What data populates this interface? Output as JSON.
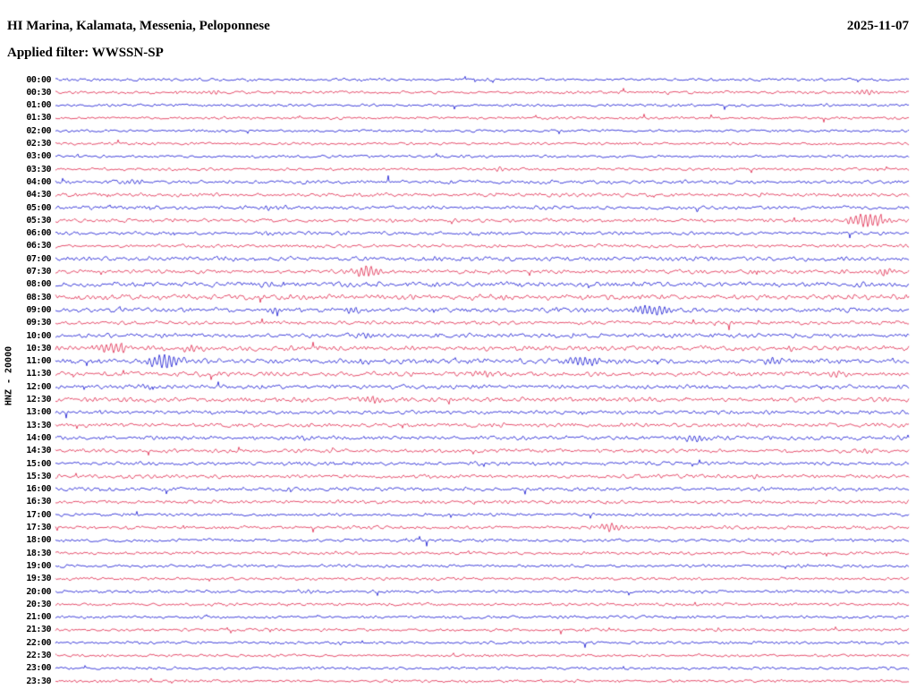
{
  "header": {
    "title": "HI Marina, Kalamata, Messenia, Peloponnese",
    "date": "2025-11-07",
    "filter_line": "Applied filter: WWSSN-SP"
  },
  "plot": {
    "channel_label": "HNZ - 20000",
    "colors": {
      "blue": "#0000cd",
      "red": "#dc143c",
      "text": "#000000",
      "background": "#ffffff"
    }
  },
  "chart_data": {
    "type": "line",
    "title": "HI Marina, Kalamata, Messenia, Peloponnese",
    "subtitle": "Applied filter: WWSSN-SP",
    "date": "2025-11-07",
    "channel": "HNZ",
    "scale": 20000,
    "row_duration_minutes": 30,
    "legend_position": "none",
    "grid": false,
    "x_axis": "time within each 30-minute line (fraction 0-1)",
    "y_axis": "relative ground velocity (trace amplitude, px)",
    "rows": [
      {
        "label": "00:00",
        "color": "blue",
        "amp": 0.9,
        "events": []
      },
      {
        "label": "00:30",
        "color": "red",
        "amp": 0.95,
        "events": [
          {
            "pos": 0.185,
            "amp": 2.0,
            "w": 6
          },
          {
            "pos": 0.95,
            "amp": 2.2,
            "w": 8
          }
        ]
      },
      {
        "label": "01:00",
        "color": "blue",
        "amp": 0.9,
        "events": []
      },
      {
        "label": "01:30",
        "color": "red",
        "amp": 0.9,
        "events": []
      },
      {
        "label": "02:00",
        "color": "blue",
        "amp": 0.85,
        "events": []
      },
      {
        "label": "02:30",
        "color": "red",
        "amp": 0.85,
        "events": []
      },
      {
        "label": "03:00",
        "color": "blue",
        "amp": 0.85,
        "events": []
      },
      {
        "label": "03:30",
        "color": "red",
        "amp": 0.9,
        "events": [
          {
            "pos": 0.52,
            "amp": 1.5,
            "w": 5
          }
        ]
      },
      {
        "label": "04:00",
        "color": "blue",
        "amp": 1.2,
        "events": [
          {
            "pos": 0.09,
            "amp": 1.8,
            "w": 10
          }
        ]
      },
      {
        "label": "04:30",
        "color": "red",
        "amp": 1.2,
        "events": []
      },
      {
        "label": "05:00",
        "color": "blue",
        "amp": 1.25,
        "events": [
          {
            "pos": 0.26,
            "amp": 1.8,
            "w": 12
          }
        ]
      },
      {
        "label": "05:30",
        "color": "red",
        "amp": 1.2,
        "events": [
          {
            "pos": 0.952,
            "amp": 7.0,
            "w": 15
          }
        ]
      },
      {
        "label": "06:00",
        "color": "blue",
        "amp": 1.1,
        "events": [
          {
            "pos": 0.25,
            "amp": 1.5,
            "w": 8
          }
        ]
      },
      {
        "label": "06:30",
        "color": "red",
        "amp": 1.1,
        "events": []
      },
      {
        "label": "07:00",
        "color": "blue",
        "amp": 1.4,
        "events": [
          {
            "pos": 0.2,
            "amp": 1.8,
            "w": 8
          },
          {
            "pos": 0.45,
            "amp": 1.8,
            "w": 8
          }
        ]
      },
      {
        "label": "07:30",
        "color": "red",
        "amp": 1.3,
        "events": [
          {
            "pos": 0.365,
            "amp": 6.0,
            "w": 12
          },
          {
            "pos": 0.967,
            "amp": 3.5,
            "w": 8
          }
        ]
      },
      {
        "label": "08:00",
        "color": "blue",
        "amp": 1.6,
        "events": []
      },
      {
        "label": "08:30",
        "color": "red",
        "amp": 1.7,
        "events": [
          {
            "pos": 0.5,
            "amp": 2.2,
            "w": 8
          }
        ]
      },
      {
        "label": "09:00",
        "color": "blue",
        "amp": 1.5,
        "events": [
          {
            "pos": 0.255,
            "amp": 2.2,
            "w": 8
          },
          {
            "pos": 0.35,
            "amp": 2.5,
            "w": 8
          },
          {
            "pos": 0.7,
            "amp": 5.0,
            "w": 16
          }
        ]
      },
      {
        "label": "09:30",
        "color": "red",
        "amp": 1.2,
        "events": []
      },
      {
        "label": "10:00",
        "color": "blue",
        "amp": 1.4,
        "events": [
          {
            "pos": 0.36,
            "amp": 2.0,
            "w": 8
          }
        ]
      },
      {
        "label": "10:30",
        "color": "red",
        "amp": 1.6,
        "events": [
          {
            "pos": 0.066,
            "amp": 5.0,
            "w": 12
          },
          {
            "pos": 0.16,
            "amp": 2.5,
            "w": 8
          },
          {
            "pos": 0.86,
            "amp": 2.0,
            "w": 8
          }
        ]
      },
      {
        "label": "11:00",
        "color": "blue",
        "amp": 1.6,
        "events": [
          {
            "pos": 0.129,
            "amp": 7.0,
            "w": 14
          },
          {
            "pos": 0.365,
            "amp": 2.5,
            "w": 8
          },
          {
            "pos": 0.622,
            "amp": 3.5,
            "w": 16
          },
          {
            "pos": 0.836,
            "amp": 2.5,
            "w": 10
          }
        ]
      },
      {
        "label": "11:30",
        "color": "red",
        "amp": 1.5,
        "events": [
          {
            "pos": 0.5,
            "amp": 2.5,
            "w": 8
          },
          {
            "pos": 0.92,
            "amp": 2.0,
            "w": 8
          }
        ]
      },
      {
        "label": "12:00",
        "color": "blue",
        "amp": 1.3,
        "events": [
          {
            "pos": 0.1,
            "amp": 1.8,
            "w": 8
          }
        ]
      },
      {
        "label": "12:30",
        "color": "red",
        "amp": 1.5,
        "events": [
          {
            "pos": 0.29,
            "amp": 2.2,
            "w": 8
          },
          {
            "pos": 0.37,
            "amp": 4.0,
            "w": 10
          }
        ]
      },
      {
        "label": "13:00",
        "color": "blue",
        "amp": 1.2,
        "events": []
      },
      {
        "label": "13:30",
        "color": "red",
        "amp": 1.3,
        "events": [
          {
            "pos": 0.52,
            "amp": 1.8,
            "w": 8
          }
        ]
      },
      {
        "label": "14:00",
        "color": "blue",
        "amp": 1.3,
        "events": [
          {
            "pos": 0.29,
            "amp": 1.8,
            "w": 8
          },
          {
            "pos": 0.75,
            "amp": 3.5,
            "w": 14
          }
        ]
      },
      {
        "label": "14:30",
        "color": "red",
        "amp": 1.2,
        "events": [
          {
            "pos": 0.95,
            "amp": 2.0,
            "w": 6
          }
        ]
      },
      {
        "label": "15:00",
        "color": "blue",
        "amp": 1.2,
        "events": []
      },
      {
        "label": "15:30",
        "color": "red",
        "amp": 1.2,
        "events": [
          {
            "pos": 0.82,
            "amp": 1.8,
            "w": 8
          }
        ]
      },
      {
        "label": "16:00",
        "color": "blue",
        "amp": 1.2,
        "events": []
      },
      {
        "label": "16:30",
        "color": "red",
        "amp": 1.1,
        "events": []
      },
      {
        "label": "17:00",
        "color": "blue",
        "amp": 1.0,
        "events": []
      },
      {
        "label": "17:30",
        "color": "red",
        "amp": 1.1,
        "events": [
          {
            "pos": 0.648,
            "amp": 4.0,
            "w": 10
          }
        ]
      },
      {
        "label": "18:00",
        "color": "blue",
        "amp": 1.0,
        "events": []
      },
      {
        "label": "18:30",
        "color": "red",
        "amp": 1.0,
        "events": []
      },
      {
        "label": "19:00",
        "color": "blue",
        "amp": 1.0,
        "events": [
          {
            "pos": 0.77,
            "amp": 1.8,
            "w": 6
          }
        ]
      },
      {
        "label": "19:30",
        "color": "red",
        "amp": 0.95,
        "events": []
      },
      {
        "label": "20:00",
        "color": "blue",
        "amp": 1.0,
        "events": [
          {
            "pos": 0.297,
            "amp": 2.0,
            "w": 8
          }
        ]
      },
      {
        "label": "20:30",
        "color": "red",
        "amp": 0.95,
        "events": []
      },
      {
        "label": "21:00",
        "color": "blue",
        "amp": 0.95,
        "events": [
          {
            "pos": 0.6,
            "amp": 1.8,
            "w": 6
          }
        ]
      },
      {
        "label": "21:30",
        "color": "red",
        "amp": 0.9,
        "events": []
      },
      {
        "label": "22:00",
        "color": "blue",
        "amp": 0.95,
        "events": [
          {
            "pos": 0.33,
            "amp": 1.5,
            "w": 6
          }
        ]
      },
      {
        "label": "22:30",
        "color": "red",
        "amp": 0.9,
        "events": []
      },
      {
        "label": "23:00",
        "color": "blue",
        "amp": 0.95,
        "events": []
      },
      {
        "label": "23:30",
        "color": "red",
        "amp": 0.9,
        "events": []
      }
    ]
  }
}
